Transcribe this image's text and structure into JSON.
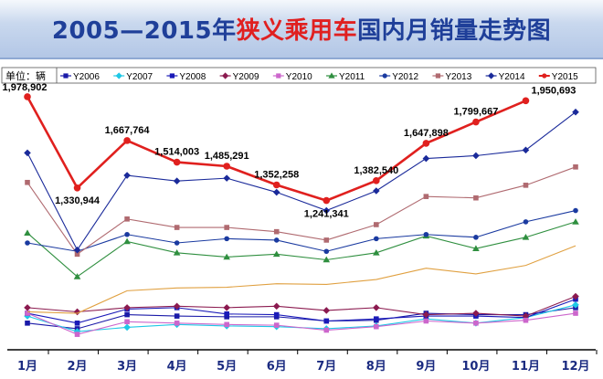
{
  "header": {
    "title_parts": [
      {
        "text": "2005—2015年",
        "color": "#1f3f99"
      },
      {
        "text": "狭义乘用车",
        "color": "#e02020"
      },
      {
        "text": "国内月销量走势图",
        "color": "#1f3f99"
      }
    ]
  },
  "chart_data": {
    "type": "line",
    "unit_label": "单位：辆",
    "categories": [
      "1月",
      "2月",
      "3月",
      "4月",
      "5月",
      "6月",
      "7月",
      "8月",
      "9月",
      "10月",
      "11月",
      "12月"
    ],
    "y_axis_visible": false,
    "ylim": [
      200000,
      2050000
    ],
    "grid": false,
    "legend_position": "top",
    "series": [
      {
        "name": "Y2006",
        "color": "#1a1aa8",
        "marker": "square",
        "values": [
          370000,
          330000,
          430000,
          420000,
          415000,
          415000,
          385000,
          390000,
          440000,
          430000,
          430000,
          480000
        ]
      },
      {
        "name": "Y2007",
        "color": "#1ec8e6",
        "marker": "diamond",
        "values": [
          420000,
          310000,
          340000,
          360000,
          350000,
          345000,
          330000,
          350000,
          400000,
          370000,
          410000,
          500000
        ]
      },
      {
        "name": "Y2008",
        "color": "#1a1ab8",
        "marker": "square",
        "values": [
          440000,
          370000,
          470000,
          480000,
          435000,
          430000,
          385000,
          400000,
          420000,
          420000,
          410000,
          540000
        ]
      },
      {
        "name": "Y2009",
        "color": "#8b1a4f",
        "marker": "diamond",
        "values": [
          480000,
          450000,
          480000,
          490000,
          480000,
          490000,
          460000,
          480000,
          430000,
          440000,
          420000,
          560000
        ]
      },
      {
        "name": "Y2010",
        "color": "#cc66cc",
        "marker": "square",
        "values": [
          440000,
          290000,
          380000,
          370000,
          360000,
          355000,
          320000,
          345000,
          385000,
          370000,
          390000,
          440000
        ]
      },
      {
        "name": "Y2011",
        "color": "#2f8f3f",
        "marker": "triangle",
        "values": [
          1010000,
          700000,
          950000,
          870000,
          840000,
          860000,
          820000,
          870000,
          990000,
          900000,
          980000,
          1090000
        ]
      },
      {
        "name": "Y2012",
        "color": "#1a3aa0",
        "marker": "circle",
        "values": [
          940000,
          880000,
          1000000,
          940000,
          970000,
          960000,
          880000,
          970000,
          1000000,
          980000,
          1090000,
          1170000
        ]
      },
      {
        "name": "Y2013",
        "color": "#b06a70",
        "marker": "square",
        "values": [
          1370000,
          860000,
          1110000,
          1050000,
          1050000,
          1020000,
          960000,
          1070000,
          1270000,
          1260000,
          1350000,
          1480000
        ]
      },
      {
        "name": "Y2014",
        "color": "#1a2a9a",
        "marker": "diamond",
        "values": [
          1580000,
          890000,
          1420000,
          1380000,
          1400000,
          1300000,
          1170000,
          1310000,
          1540000,
          1560000,
          1600000,
          1870000
        ]
      },
      {
        "name": "Y2015",
        "color": "#e0201e",
        "marker": "circle",
        "values": [
          1978902,
          1330944,
          1667764,
          1514003,
          1485291,
          1352258,
          1241341,
          1382540,
          1647898,
          1799667,
          1950693,
          null
        ],
        "data_labels": [
          "1,978,902",
          "1,330,944",
          "1,667,764",
          "1,514,003",
          "1,485,291",
          "1,352,258",
          "1,241,341",
          "1,382,540",
          "1,647,898",
          "1,799,667",
          "1,950,693"
        ]
      },
      {
        "name": "",
        "color": "#e0a040",
        "marker": "none",
        "values": [
          450000,
          440000,
          600000,
          620000,
          625000,
          650000,
          645000,
          680000,
          760000,
          720000,
          780000,
          920000
        ]
      }
    ]
  }
}
